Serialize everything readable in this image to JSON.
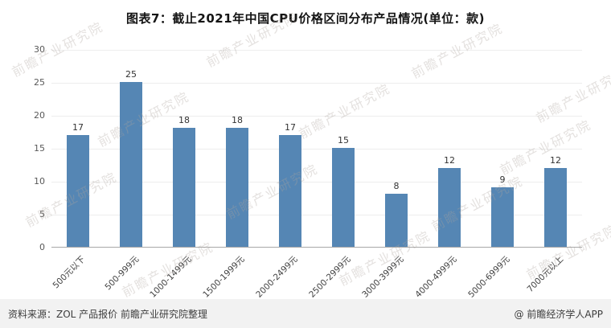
{
  "chart_data": {
    "type": "bar",
    "title": "图表7：截止2021年中国CPU价格区间分布产品情况(单位：款)",
    "categories": [
      "500元以下",
      "500-999元",
      "1000-1499元",
      "1500-1999元",
      "2000-2499元",
      "2500-2999元",
      "3000-3999元",
      "4000-4999元",
      "5000-6999元",
      "7000元以上"
    ],
    "values": [
      17,
      25,
      18,
      18,
      17,
      15,
      8,
      12,
      9,
      12
    ],
    "ylim": [
      0,
      30
    ],
    "ytick_step": 5,
    "yticks": [
      0,
      5,
      10,
      15,
      20,
      25,
      30
    ],
    "bar_color": "#5586B4",
    "grid": true,
    "legend": "none",
    "xlabel": "",
    "ylabel": ""
  },
  "footer": {
    "source": "资料来源：ZOL 产品报价 前瞻产业研究院整理",
    "brand": "@ 前瞻经济学人APP"
  },
  "watermark": {
    "text": "前瞻产业研究院"
  }
}
